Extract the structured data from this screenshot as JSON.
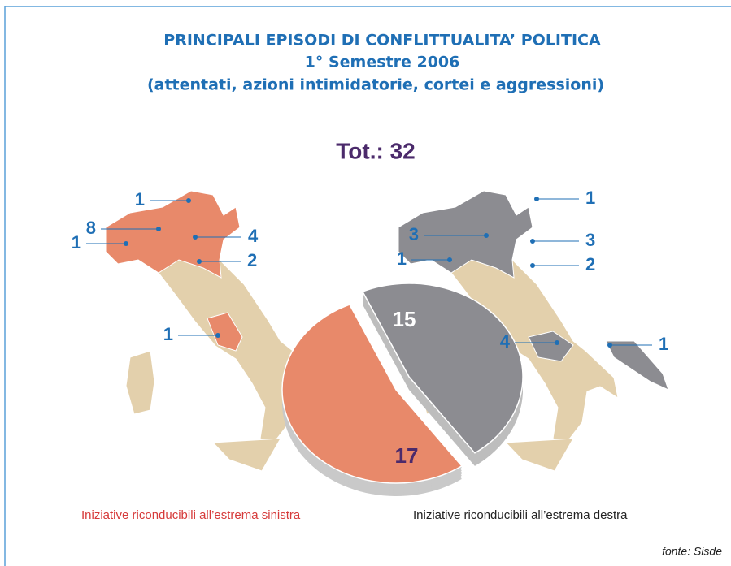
{
  "chart_data": {
    "type": "pie",
    "title": "PRINCIPALI EPISODI DI CONFLITTUALITA’ POLITICA",
    "subtitle": "1° Semestre 2006",
    "subtitle_2": "(attentati, azioni intimidatorie, cortei e aggressioni)",
    "total_label": "Tot.: 32",
    "categories": [
      "Iniziative riconducibili all’estrema sinistra",
      "Iniziative riconducibili all’estrema destra"
    ],
    "values": [
      17,
      15
    ],
    "colors": [
      "#e8896a",
      "#8c8c91"
    ],
    "legend_colors": [
      "#d63a3a",
      "#222222"
    ],
    "maps": [
      {
        "counts": [
          1,
          8,
          1,
          4,
          2,
          1
        ]
      },
      {
        "counts": [
          1,
          3,
          1,
          3,
          2,
          4,
          1
        ]
      }
    ],
    "source": "fonte: Sisde"
  }
}
